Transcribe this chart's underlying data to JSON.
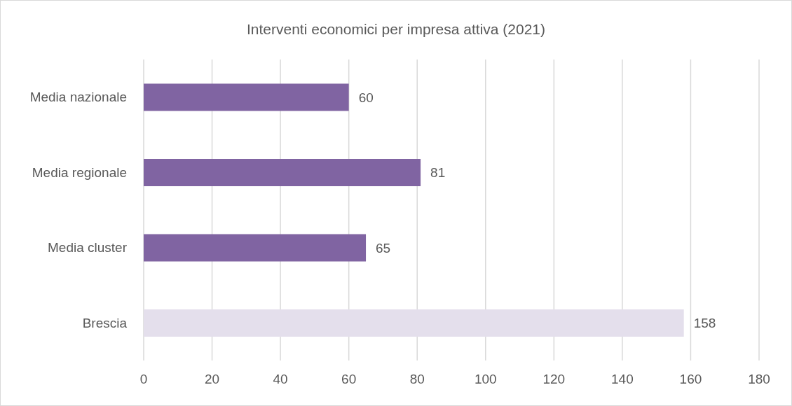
{
  "chart_data": {
    "type": "bar",
    "orientation": "horizontal",
    "title": "Interventi economici per impresa attiva (2021)",
    "categories": [
      "Media  nazionale",
      "Media regionale",
      "Media cluster",
      "Brescia"
    ],
    "values": [
      60,
      81,
      65,
      158
    ],
    "colors": [
      "#8064a2",
      "#8064a2",
      "#8064a2",
      "#e4dfec"
    ],
    "xlim": [
      0,
      180
    ],
    "xticks": [
      0,
      20,
      40,
      60,
      80,
      100,
      120,
      140,
      160,
      180
    ],
    "grid": "x",
    "data_labels": true
  }
}
